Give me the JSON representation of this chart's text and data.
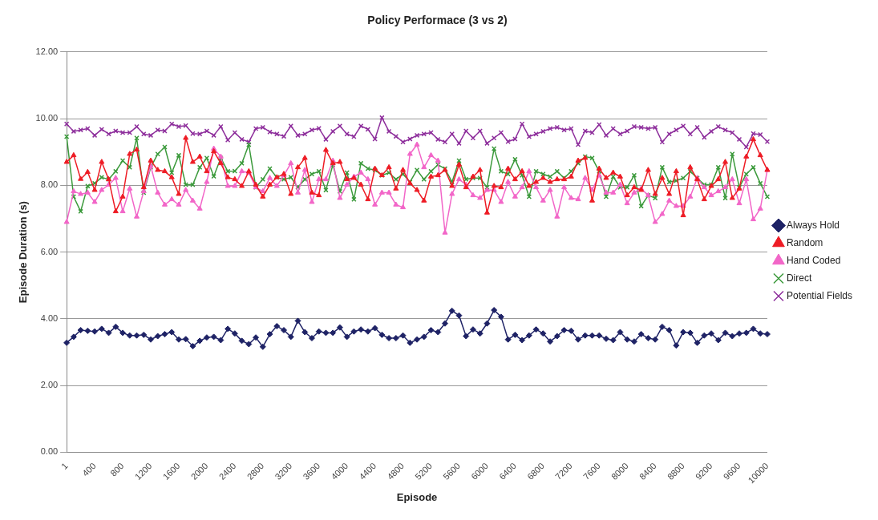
{
  "chart_data": {
    "type": "line",
    "title": "Policy Performace (3 vs 2)",
    "xlabel": "Episode",
    "ylabel": "Episode Duration (s)",
    "categories": [
      "1",
      null,
      null,
      null,
      "400",
      null,
      null,
      null,
      "800",
      null,
      null,
      null,
      "1200",
      null,
      null,
      null,
      "1600",
      null,
      null,
      null,
      "2000",
      null,
      null,
      null,
      "2400",
      null,
      null,
      null,
      "2800",
      null,
      null,
      null,
      "3200",
      null,
      null,
      null,
      "3600",
      null,
      null,
      null,
      "4000",
      null,
      null,
      null,
      "4400",
      null,
      null,
      null,
      "4800",
      null,
      null,
      null,
      "5200",
      null,
      null,
      null,
      "5600",
      null,
      null,
      null,
      "6000",
      null,
      null,
      null,
      "6400",
      null,
      null,
      null,
      "6800",
      null,
      null,
      null,
      "7200",
      null,
      null,
      null,
      "7600",
      null,
      null,
      null,
      "8000",
      null,
      null,
      null,
      "8400",
      null,
      null,
      null,
      "8800",
      null,
      null,
      null,
      "9200",
      null,
      null,
      null,
      "9600",
      null,
      null,
      null,
      "10000"
    ],
    "ylim": [
      0,
      12
    ],
    "yticks": [
      {
        "value": 0,
        "label": "0.00"
      },
      {
        "value": 2,
        "label": "2.00"
      },
      {
        "value": 4,
        "label": "4.00"
      },
      {
        "value": 6,
        "label": "6.00"
      },
      {
        "value": 8,
        "label": "8.00"
      },
      {
        "value": 10,
        "label": "10.00"
      },
      {
        "value": 12,
        "label": "12.00"
      }
    ],
    "grid": "y",
    "legend": "right",
    "line_style": "solid",
    "series": [
      {
        "name": "Always Hold",
        "color": "#1f2366",
        "marker": "diamond",
        "values": [
          3.28,
          3.46,
          3.66,
          3.64,
          3.62,
          3.7,
          3.58,
          3.76,
          3.58,
          3.5,
          3.5,
          3.52,
          3.38,
          3.48,
          3.54,
          3.6,
          3.38,
          3.39,
          3.18,
          3.34,
          3.44,
          3.46,
          3.36,
          3.7,
          3.56,
          3.34,
          3.24,
          3.44,
          3.16,
          3.54,
          3.78,
          3.66,
          3.46,
          3.94,
          3.6,
          3.42,
          3.62,
          3.58,
          3.58,
          3.74,
          3.46,
          3.62,
          3.68,
          3.62,
          3.72,
          3.52,
          3.42,
          3.42,
          3.5,
          3.28,
          3.38,
          3.46,
          3.66,
          3.6,
          3.86,
          4.24,
          4.1,
          3.48,
          3.68,
          3.56,
          3.86,
          4.26,
          4.06,
          3.38,
          3.52,
          3.36,
          3.5,
          3.68,
          3.56,
          3.32,
          3.48,
          3.66,
          3.64,
          3.38,
          3.5,
          3.5,
          3.5,
          3.4,
          3.36,
          3.6,
          3.38,
          3.32,
          3.54,
          3.42,
          3.38,
          3.76,
          3.66,
          3.2,
          3.6,
          3.58,
          3.28,
          3.5,
          3.56,
          3.36,
          3.58,
          3.48,
          3.56,
          3.58,
          3.7,
          3.56,
          3.54
        ]
      },
      {
        "name": "Random",
        "color": "#ee1c25",
        "marker": "triangle",
        "values": [
          8.7,
          8.9,
          8.19,
          8.4,
          7.86,
          8.7,
          8.18,
          7.22,
          7.66,
          8.94,
          9.07,
          7.94,
          8.74,
          8.46,
          8.42,
          8.24,
          7.74,
          9.42,
          8.7,
          8.86,
          8.42,
          9.02,
          8.66,
          8.24,
          8.18,
          7.98,
          8.42,
          8.02,
          7.66,
          8.02,
          8.24,
          8.34,
          7.74,
          8.54,
          8.82,
          7.78,
          7.7,
          9.06,
          8.66,
          8.7,
          8.18,
          8.22,
          8.02,
          7.58,
          8.5,
          8.3,
          8.54,
          7.9,
          8.46,
          8.06,
          7.86,
          7.54,
          8.26,
          8.3,
          8.46,
          7.98,
          8.62,
          7.94,
          8.26,
          8.46,
          7.18,
          7.98,
          7.94,
          8.5,
          8.18,
          8.42,
          7.98,
          8.1,
          8.22,
          8.1,
          8.18,
          8.18,
          8.26,
          8.74,
          8.82,
          7.54,
          8.5,
          8.22,
          8.38,
          8.26,
          7.7,
          7.94,
          7.86,
          8.46,
          7.74,
          8.22,
          7.74,
          8.42,
          7.1,
          8.54,
          8.18,
          7.58,
          7.98,
          8.18,
          8.7,
          7.62,
          7.9,
          8.86,
          9.38,
          8.9,
          8.46
        ]
      },
      {
        "name": "Hand Coded",
        "color": "#f266c8",
        "marker": "triangle",
        "values": [
          6.9,
          7.82,
          7.74,
          7.78,
          7.5,
          7.86,
          8.02,
          8.22,
          7.22,
          7.9,
          7.06,
          7.82,
          8.58,
          7.78,
          7.42,
          7.58,
          7.42,
          7.86,
          7.54,
          7.3,
          8.1,
          9.1,
          8.86,
          7.98,
          7.98,
          8.42,
          8.38,
          7.94,
          7.82,
          8.22,
          7.98,
          8.3,
          8.66,
          7.78,
          8.46,
          7.5,
          8.18,
          8.18,
          8.74,
          7.62,
          8.02,
          8.26,
          8.38,
          8.18,
          7.42,
          7.78,
          7.78,
          7.42,
          7.34,
          8.94,
          9.22,
          8.54,
          8.9,
          8.74,
          6.58,
          7.74,
          8.18,
          8.02,
          7.7,
          7.62,
          7.86,
          7.86,
          7.5,
          8.1,
          7.66,
          7.94,
          8.42,
          7.94,
          7.54,
          7.86,
          7.06,
          7.94,
          7.62,
          7.58,
          8.22,
          7.86,
          8.3,
          7.78,
          7.78,
          8.02,
          7.46,
          7.78,
          7.9,
          7.7,
          6.9,
          7.14,
          7.54,
          7.38,
          7.38,
          7.66,
          8.22,
          7.94,
          7.7,
          7.82,
          7.94,
          8.18,
          7.46,
          8.18,
          6.98,
          7.3,
          8.46
        ]
      },
      {
        "name": "Direct",
        "color": "#3c9a3c",
        "marker": "cross",
        "values": [
          9.46,
          7.66,
          7.22,
          7.98,
          8.06,
          8.24,
          8.18,
          8.42,
          8.74,
          8.54,
          9.42,
          7.78,
          8.54,
          8.94,
          9.15,
          8.38,
          8.9,
          8.02,
          8.02,
          8.54,
          8.82,
          8.27,
          8.82,
          8.42,
          8.43,
          8.66,
          9.22,
          7.94,
          8.18,
          8.5,
          8.24,
          8.18,
          8.24,
          7.94,
          8.18,
          8.34,
          8.42,
          7.86,
          8.62,
          7.82,
          8.38,
          7.58,
          8.66,
          8.5,
          8.46,
          8.3,
          8.38,
          8.18,
          8.34,
          8.1,
          8.46,
          8.18,
          8.42,
          8.62,
          8.5,
          8.1,
          8.74,
          8.18,
          8.22,
          8.22,
          7.94,
          9.1,
          8.42,
          8.34,
          8.78,
          8.3,
          7.66,
          8.42,
          8.34,
          8.26,
          8.42,
          8.22,
          8.42,
          8.66,
          8.86,
          8.82,
          8.42,
          7.66,
          8.26,
          7.94,
          7.94,
          8.3,
          7.38,
          7.7,
          7.62,
          8.54,
          8.1,
          8.14,
          8.22,
          8.42,
          8.22,
          8.02,
          8.02,
          8.54,
          7.62,
          8.94,
          7.94,
          8.34,
          8.54,
          8.06,
          7.66
        ]
      },
      {
        "name": "Potential Fields",
        "color": "#8e2f9c",
        "marker": "cross",
        "values": [
          9.84,
          9.62,
          9.66,
          9.7,
          9.5,
          9.68,
          9.54,
          9.63,
          9.58,
          9.58,
          9.76,
          9.54,
          9.5,
          9.66,
          9.63,
          9.84,
          9.76,
          9.79,
          9.55,
          9.54,
          9.63,
          9.5,
          9.76,
          9.36,
          9.58,
          9.38,
          9.3,
          9.7,
          9.74,
          9.6,
          9.54,
          9.47,
          9.78,
          9.5,
          9.54,
          9.66,
          9.71,
          9.38,
          9.62,
          9.78,
          9.54,
          9.46,
          9.78,
          9.68,
          9.39,
          10.03,
          9.62,
          9.47,
          9.3,
          9.39,
          9.5,
          9.54,
          9.58,
          9.38,
          9.3,
          9.54,
          9.26,
          9.63,
          9.42,
          9.63,
          9.26,
          9.42,
          9.58,
          9.31,
          9.39,
          9.84,
          9.46,
          9.54,
          9.62,
          9.7,
          9.74,
          9.66,
          9.7,
          9.22,
          9.63,
          9.58,
          9.82,
          9.5,
          9.7,
          9.54,
          9.63,
          9.76,
          9.74,
          9.7,
          9.74,
          9.3,
          9.54,
          9.66,
          9.78,
          9.54,
          9.74,
          9.44,
          9.62,
          9.76,
          9.66,
          9.58,
          9.38,
          9.15,
          9.55,
          9.52,
          9.31
        ]
      }
    ]
  }
}
